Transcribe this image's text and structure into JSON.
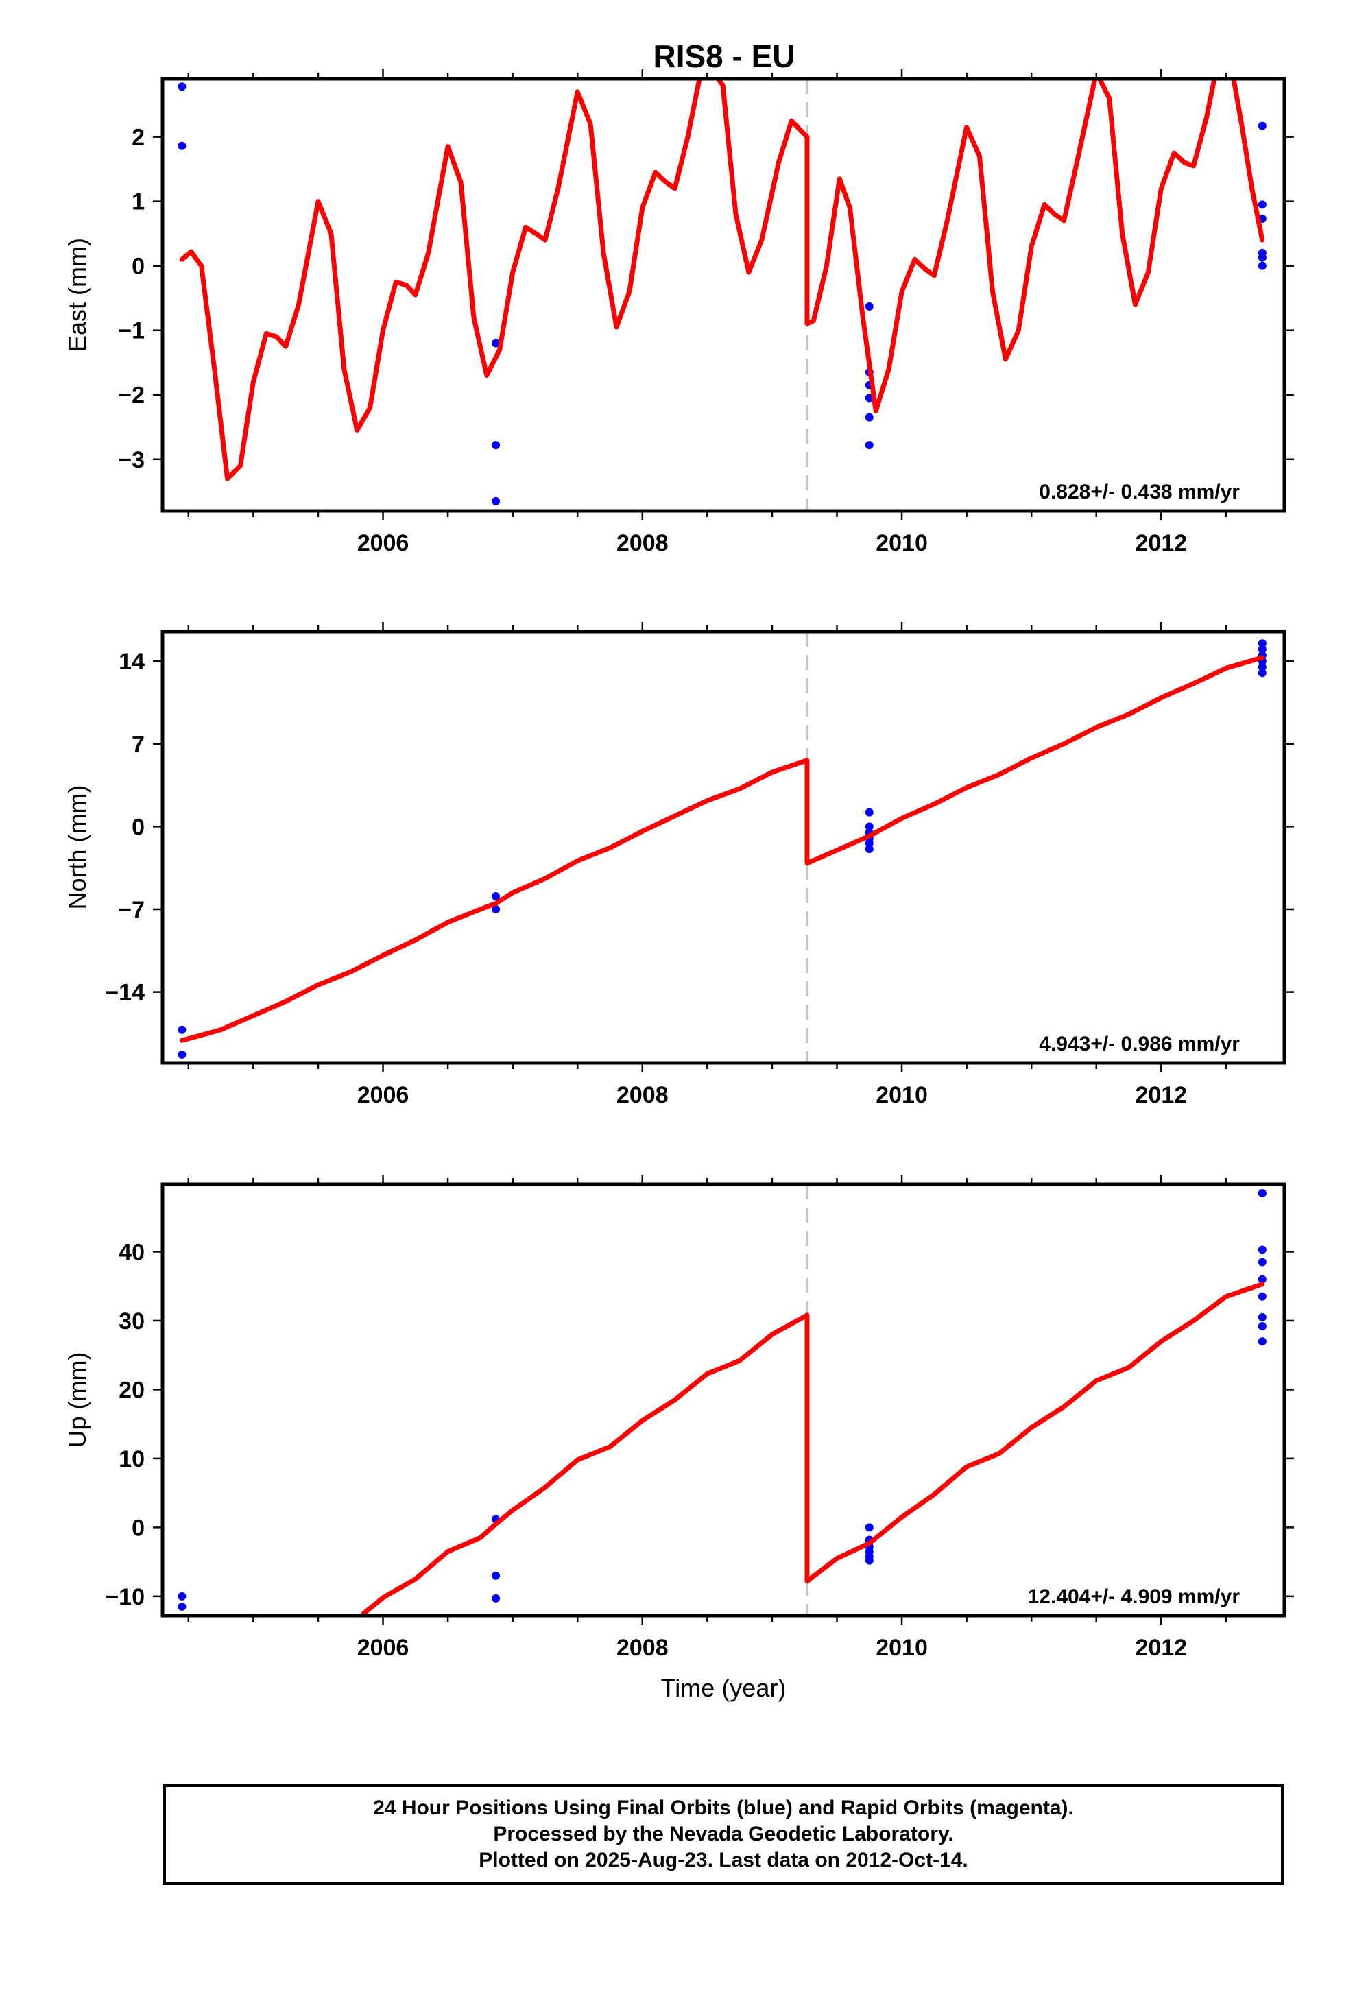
{
  "chart_data": [
    {
      "type": "line",
      "title": "RIS8 - EU",
      "ylabel": "East (mm)",
      "xlabel": "",
      "xlim": [
        2004.3,
        2012.95
      ],
      "ylim": [
        -3.8,
        2.9
      ],
      "xticks": [
        2006,
        2008,
        2010,
        2012
      ],
      "yticks": [
        -3,
        -2,
        -1,
        0,
        1,
        2
      ],
      "ytick_labels": [
        "−3",
        "−2",
        "−1",
        "0",
        "1",
        "2"
      ],
      "grid": false,
      "offset_epoch": 2009.27,
      "rate_label": "0.828+/- 0.438 mm/yr",
      "series": [
        {
          "kind": "points",
          "color": "#0000ff",
          "points": [
            [
              2004.45,
              2.78
            ],
            [
              2004.45,
              1.86
            ],
            [
              2006.87,
              -1.2
            ],
            [
              2006.87,
              -2.78
            ],
            [
              2006.87,
              -3.65
            ],
            [
              2009.75,
              -0.63
            ],
            [
              2009.75,
              -1.65
            ],
            [
              2009.75,
              -1.85
            ],
            [
              2009.75,
              -2.05
            ],
            [
              2009.75,
              -2.35
            ],
            [
              2009.75,
              -2.78
            ],
            [
              2012.78,
              2.17
            ],
            [
              2012.78,
              0.95
            ],
            [
              2012.78,
              0.73
            ],
            [
              2012.78,
              0.2
            ],
            [
              2012.78,
              0.13
            ],
            [
              2012.78,
              0.0
            ]
          ]
        },
        {
          "kind": "line",
          "color": "#ff0000",
          "points": [
            [
              2004.45,
              0.1
            ],
            [
              2004.52,
              0.22
            ],
            [
              2004.6,
              0.0
            ],
            [
              2004.7,
              -1.6
            ],
            [
              2004.8,
              -3.3
            ],
            [
              2004.9,
              -3.1
            ],
            [
              2005.0,
              -1.8
            ],
            [
              2005.1,
              -1.05
            ],
            [
              2005.18,
              -1.1
            ],
            [
              2005.25,
              -1.25
            ],
            [
              2005.35,
              -0.6
            ],
            [
              2005.5,
              1.0
            ],
            [
              2005.6,
              0.5
            ],
            [
              2005.7,
              -1.6
            ],
            [
              2005.8,
              -2.55
            ],
            [
              2005.9,
              -2.2
            ],
            [
              2006.0,
              -1.0
            ],
            [
              2006.1,
              -0.25
            ],
            [
              2006.18,
              -0.3
            ],
            [
              2006.25,
              -0.45
            ],
            [
              2006.35,
              0.2
            ],
            [
              2006.5,
              1.85
            ],
            [
              2006.6,
              1.3
            ],
            [
              2006.7,
              -0.8
            ],
            [
              2006.8,
              -1.7
            ],
            [
              2006.9,
              -1.3
            ],
            [
              2007.0,
              -0.1
            ],
            [
              2007.1,
              0.6
            ],
            [
              2007.18,
              0.5
            ],
            [
              2007.25,
              0.4
            ],
            [
              2007.35,
              1.2
            ],
            [
              2007.5,
              2.7
            ],
            [
              2007.6,
              2.2
            ],
            [
              2007.7,
              0.2
            ],
            [
              2007.8,
              -0.95
            ],
            [
              2007.9,
              -0.4
            ],
            [
              2008.0,
              0.9
            ],
            [
              2008.1,
              1.45
            ],
            [
              2008.18,
              1.3
            ],
            [
              2008.25,
              1.2
            ],
            [
              2008.35,
              2.0
            ],
            [
              2008.45,
              3.0
            ],
            [
              2008.55,
              3.0
            ],
            [
              2008.62,
              2.8
            ],
            [
              2008.72,
              0.8
            ],
            [
              2008.82,
              -0.1
            ],
            [
              2008.92,
              0.4
            ],
            [
              2009.05,
              1.6
            ],
            [
              2009.15,
              2.25
            ],
            [
              2009.22,
              2.1
            ],
            [
              2009.27,
              2.0
            ],
            [
              2009.27,
              -0.9
            ],
            [
              2009.32,
              -0.85
            ],
            [
              2009.42,
              0.0
            ],
            [
              2009.52,
              1.35
            ],
            [
              2009.6,
              0.9
            ],
            [
              2009.7,
              -0.8
            ],
            [
              2009.8,
              -2.25
            ],
            [
              2009.9,
              -1.6
            ],
            [
              2010.0,
              -0.4
            ],
            [
              2010.1,
              0.1
            ],
            [
              2010.18,
              -0.05
            ],
            [
              2010.25,
              -0.15
            ],
            [
              2010.35,
              0.7
            ],
            [
              2010.5,
              2.15
            ],
            [
              2010.6,
              1.7
            ],
            [
              2010.7,
              -0.4
            ],
            [
              2010.8,
              -1.45
            ],
            [
              2010.9,
              -1.0
            ],
            [
              2011.0,
              0.3
            ],
            [
              2011.1,
              0.95
            ],
            [
              2011.18,
              0.8
            ],
            [
              2011.25,
              0.7
            ],
            [
              2011.35,
              1.6
            ],
            [
              2011.5,
              3.0
            ],
            [
              2011.6,
              2.6
            ],
            [
              2011.7,
              0.5
            ],
            [
              2011.8,
              -0.6
            ],
            [
              2011.9,
              -0.1
            ],
            [
              2012.0,
              1.2
            ],
            [
              2012.1,
              1.75
            ],
            [
              2012.18,
              1.6
            ],
            [
              2012.25,
              1.55
            ],
            [
              2012.35,
              2.3
            ],
            [
              2012.42,
              3.0
            ],
            [
              2012.55,
              3.0
            ],
            [
              2012.62,
              2.2
            ],
            [
              2012.7,
              1.2
            ],
            [
              2012.78,
              0.4
            ]
          ]
        }
      ]
    },
    {
      "type": "line",
      "title": "",
      "ylabel": "North (mm)",
      "xlabel": "",
      "xlim": [
        2004.3,
        2012.95
      ],
      "ylim": [
        -20,
        16.5
      ],
      "xticks": [
        2006,
        2008,
        2010,
        2012
      ],
      "yticks": [
        -14,
        -7,
        0,
        7,
        14
      ],
      "ytick_labels": [
        "−14",
        "−7",
        "0",
        "7",
        "14"
      ],
      "grid": false,
      "offset_epoch": 2009.27,
      "rate_label": "4.943+/- 0.986 mm/yr",
      "series": [
        {
          "kind": "points",
          "color": "#0000ff",
          "points": [
            [
              2004.45,
              -17.2
            ],
            [
              2004.45,
              -19.3
            ],
            [
              2006.87,
              -5.9
            ],
            [
              2006.87,
              -7.0
            ],
            [
              2009.75,
              1.2
            ],
            [
              2009.75,
              0.0
            ],
            [
              2009.75,
              -0.5
            ],
            [
              2009.75,
              -1.0
            ],
            [
              2009.75,
              -1.4
            ],
            [
              2009.75,
              -1.9
            ],
            [
              2012.78,
              15.5
            ],
            [
              2012.78,
              15.0
            ],
            [
              2012.78,
              14.5
            ],
            [
              2012.78,
              14.0
            ],
            [
              2012.78,
              13.5
            ],
            [
              2012.78,
              13.0
            ]
          ]
        },
        {
          "kind": "line",
          "color": "#ff0000",
          "points": [
            [
              2004.45,
              -18.1
            ],
            [
              2004.75,
              -17.2
            ],
            [
              2005.0,
              -16.0
            ],
            [
              2005.25,
              -14.8
            ],
            [
              2005.5,
              -13.4
            ],
            [
              2005.75,
              -12.3
            ],
            [
              2006.0,
              -10.9
            ],
            [
              2006.25,
              -9.6
            ],
            [
              2006.5,
              -8.1
            ],
            [
              2006.75,
              -7.0
            ],
            [
              2006.87,
              -6.5
            ],
            [
              2007.0,
              -5.6
            ],
            [
              2007.25,
              -4.4
            ],
            [
              2007.5,
              -2.9
            ],
            [
              2007.75,
              -1.8
            ],
            [
              2008.0,
              -0.4
            ],
            [
              2008.25,
              0.9
            ],
            [
              2008.5,
              2.2
            ],
            [
              2008.75,
              3.2
            ],
            [
              2009.0,
              4.6
            ],
            [
              2009.27,
              5.6
            ],
            [
              2009.27,
              -3.1
            ],
            [
              2009.5,
              -2.0
            ],
            [
              2009.75,
              -0.8
            ],
            [
              2010.0,
              0.7
            ],
            [
              2010.25,
              1.9
            ],
            [
              2010.5,
              3.3
            ],
            [
              2010.75,
              4.4
            ],
            [
              2011.0,
              5.8
            ],
            [
              2011.25,
              7.0
            ],
            [
              2011.5,
              8.4
            ],
            [
              2011.75,
              9.5
            ],
            [
              2012.0,
              10.9
            ],
            [
              2012.25,
              12.1
            ],
            [
              2012.5,
              13.4
            ],
            [
              2012.78,
              14.3
            ]
          ]
        }
      ]
    },
    {
      "type": "line",
      "title": "",
      "ylabel": "Up (mm)",
      "xlabel": "Time (year)",
      "xlim": [
        2004.3,
        2012.95
      ],
      "ylim": [
        -12.8,
        49.8
      ],
      "xticks": [
        2006,
        2008,
        2010,
        2012
      ],
      "yticks": [
        -10,
        0,
        10,
        20,
        30,
        40
      ],
      "ytick_labels": [
        "−10",
        "0",
        "10",
        "20",
        "30",
        "40"
      ],
      "grid": false,
      "offset_epoch": 2009.27,
      "rate_label": "12.404+/- 4.909 mm/yr",
      "series": [
        {
          "kind": "points",
          "color": "#0000ff",
          "points": [
            [
              2004.45,
              -10.0
            ],
            [
              2004.45,
              -11.5
            ],
            [
              2006.87,
              1.2
            ],
            [
              2006.87,
              -7.0
            ],
            [
              2006.87,
              -10.3
            ],
            [
              2009.75,
              0.0
            ],
            [
              2009.75,
              -1.8
            ],
            [
              2009.75,
              -2.8
            ],
            [
              2009.75,
              -3.5
            ],
            [
              2009.75,
              -4.2
            ],
            [
              2009.75,
              -4.8
            ],
            [
              2012.78,
              48.5
            ],
            [
              2012.78,
              40.3
            ],
            [
              2012.78,
              38.5
            ],
            [
              2012.78,
              36.0
            ],
            [
              2012.78,
              33.5
            ],
            [
              2012.78,
              30.5
            ],
            [
              2012.78,
              29.2
            ],
            [
              2012.78,
              27.0
            ]
          ]
        },
        {
          "kind": "line",
          "color": "#ff0000",
          "points": [
            [
              2005.85,
              -12.5
            ],
            [
              2006.0,
              -10.2
            ],
            [
              2006.25,
              -7.5
            ],
            [
              2006.5,
              -3.5
            ],
            [
              2006.75,
              -1.5
            ],
            [
              2006.87,
              0.5
            ],
            [
              2007.0,
              2.5
            ],
            [
              2007.25,
              5.8
            ],
            [
              2007.5,
              9.8
            ],
            [
              2007.75,
              11.7
            ],
            [
              2008.0,
              15.5
            ],
            [
              2008.25,
              18.5
            ],
            [
              2008.5,
              22.3
            ],
            [
              2008.75,
              24.2
            ],
            [
              2009.0,
              28.0
            ],
            [
              2009.27,
              30.8
            ],
            [
              2009.27,
              -7.8
            ],
            [
              2009.5,
              -4.5
            ],
            [
              2009.75,
              -2.3
            ],
            [
              2010.0,
              1.5
            ],
            [
              2010.25,
              4.8
            ],
            [
              2010.5,
              8.8
            ],
            [
              2010.75,
              10.7
            ],
            [
              2011.0,
              14.5
            ],
            [
              2011.25,
              17.5
            ],
            [
              2011.5,
              21.3
            ],
            [
              2011.75,
              23.2
            ],
            [
              2012.0,
              27.0
            ],
            [
              2012.25,
              30.0
            ],
            [
              2012.5,
              33.5
            ],
            [
              2012.78,
              35.3
            ]
          ]
        }
      ]
    }
  ],
  "footer": {
    "line1": "24 Hour Positions Using Final Orbits (blue) and Rapid Orbits (magenta).",
    "line2": "Processed by the Nevada Geodetic Laboratory.",
    "line3": "Plotted on 2025-Aug-23. Last data on 2012-Oct-14."
  }
}
